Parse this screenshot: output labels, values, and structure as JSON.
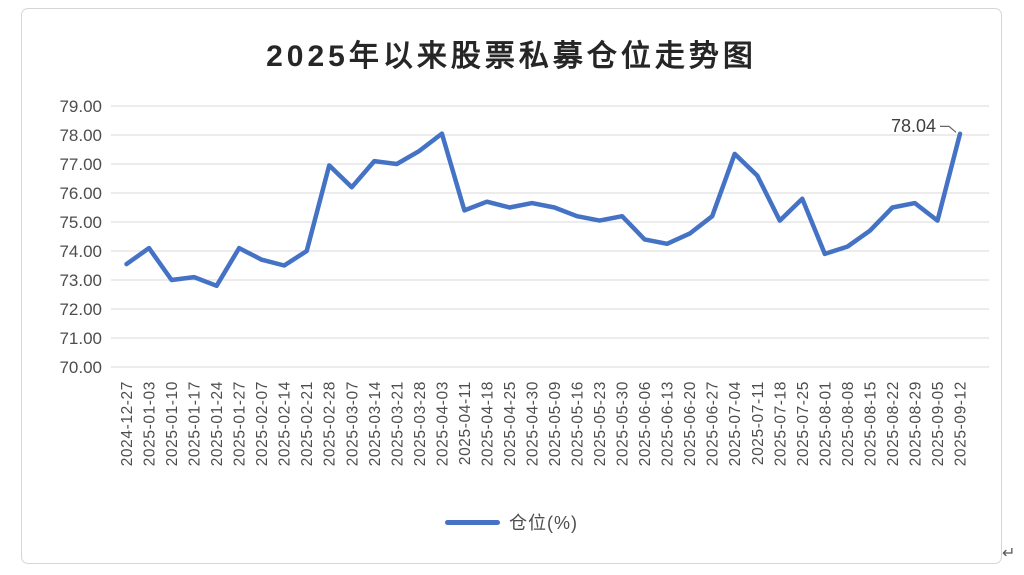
{
  "chart": {
    "title": "2025年以来股票私募仓位走势图",
    "annotation_label": "78.04",
    "legend_label": "仓位(%)",
    "return_mark": "↵"
  },
  "chart_data": {
    "type": "line",
    "title": "2025年以来股票私募仓位走势图",
    "categories": [
      "2024-12-27",
      "2025-01-03",
      "2025-01-10",
      "2025-01-17",
      "2025-01-24",
      "2025-01-27",
      "2025-02-07",
      "2025-02-14",
      "2025-02-21",
      "2025-02-28",
      "2025-03-07",
      "2025-03-14",
      "2025-03-21",
      "2025-03-28",
      "2025-04-03",
      "2025-04-11",
      "2025-04-18",
      "2025-04-25",
      "2025-04-30",
      "2025-05-09",
      "2025-05-16",
      "2025-05-23",
      "2025-05-30",
      "2025-06-06",
      "2025-06-13",
      "2025-06-20",
      "2025-06-27",
      "2025-07-04",
      "2025-07-11",
      "2025-07-18",
      "2025-07-25",
      "2025-08-01",
      "2025-08-08",
      "2025-08-15",
      "2025-08-22",
      "2025-08-29",
      "2025-09-05",
      "2025-09-12"
    ],
    "series": [
      {
        "name": "仓位(%)",
        "color": "#4472C4",
        "values": [
          73.55,
          74.1,
          73.0,
          73.1,
          72.8,
          74.1,
          73.7,
          73.5,
          74.0,
          76.95,
          76.2,
          77.1,
          77.0,
          77.45,
          78.05,
          75.4,
          75.7,
          75.5,
          75.65,
          75.5,
          75.2,
          75.05,
          75.2,
          74.4,
          74.25,
          74.6,
          75.2,
          77.35,
          76.6,
          75.05,
          75.8,
          73.9,
          74.15,
          74.7,
          75.5,
          75.65,
          75.05,
          78.04
        ]
      }
    ],
    "ylim": [
      70,
      79
    ],
    "ytick_labels": [
      "79.00",
      "78.00",
      "77.00",
      "76.00",
      "75.00",
      "74.00",
      "73.00",
      "72.00",
      "71.00",
      "70.00"
    ],
    "grid": true,
    "legend_position": "bottom",
    "annotation": {
      "text": "78.04",
      "index": 37
    },
    "gridline_color": "#d9d9d9",
    "tick_label_color": "#4d4d4d"
  }
}
